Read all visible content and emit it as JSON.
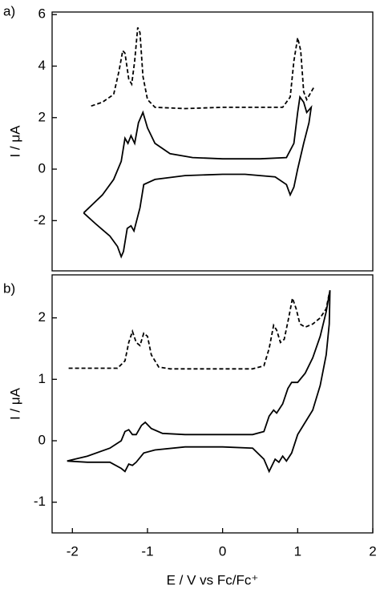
{
  "chart_data": [
    {
      "type": "line",
      "panel_label": "a)",
      "ylabel": "I / μA",
      "ylim": [
        -3.95,
        6.1
      ],
      "yticks": [
        -2,
        0,
        2,
        4,
        6
      ],
      "xlim": [
        -2.27,
        2
      ],
      "series": [
        {
          "color": "#000000",
          "dashed": true,
          "x": [
            -1.75,
            -1.6,
            -1.45,
            -1.38,
            -1.33,
            -1.3,
            -1.25,
            -1.21,
            -1.17,
            -1.13,
            -1.1,
            -1.06,
            -1.0,
            -0.9,
            -0.5,
            0,
            0.4,
            0.8,
            0.9,
            0.95,
            1.0,
            1.04,
            1.08,
            1.12,
            1.18,
            1.22
          ],
          "values": [
            2.45,
            2.6,
            2.9,
            3.8,
            4.6,
            4.5,
            3.5,
            3.3,
            4.2,
            5.5,
            5.3,
            3.6,
            2.7,
            2.4,
            2.35,
            2.4,
            2.4,
            2.4,
            2.8,
            4.2,
            5.1,
            4.6,
            3.0,
            2.7,
            3.0,
            3.2
          ]
        },
        {
          "color": "#000000",
          "dashed": false,
          "x": [
            -1.85,
            -1.6,
            -1.45,
            -1.35,
            -1.3,
            -1.26,
            -1.22,
            -1.17,
            -1.12,
            -1.06,
            -1.0,
            -0.9,
            -0.7,
            -0.4,
            0,
            0.5,
            0.85,
            0.95,
            1.0,
            1.03,
            1.08,
            1.12,
            1.18,
            1.15,
            1.08,
            1.0,
            0.95,
            0.9,
            0.85,
            0.7,
            0.3,
            0,
            -0.5,
            -0.9,
            -1.05,
            -1.1,
            -1.18,
            -1.22,
            -1.27,
            -1.32,
            -1.35,
            -1.4,
            -1.5,
            -1.7,
            -1.85
          ],
          "values": [
            -1.7,
            -1.0,
            -0.4,
            0.3,
            1.2,
            1.0,
            1.3,
            1.0,
            1.8,
            2.2,
            1.6,
            1.0,
            0.6,
            0.45,
            0.4,
            0.4,
            0.45,
            1.0,
            2.2,
            2.8,
            2.6,
            2.2,
            2.4,
            1.8,
            1.0,
            0.0,
            -0.7,
            -1.0,
            -0.6,
            -0.3,
            -0.2,
            -0.2,
            -0.25,
            -0.4,
            -0.6,
            -1.5,
            -2.4,
            -2.2,
            -2.3,
            -3.2,
            -3.4,
            -3.0,
            -2.6,
            -2.1,
            -1.7
          ]
        }
      ]
    },
    {
      "type": "line",
      "panel_label": "b)",
      "ylabel": "I / μA",
      "xlabel": "E / V vs Fc/Fc⁺",
      "ylim": [
        -1.5,
        2.7
      ],
      "yticks": [
        -1,
        0,
        1,
        2
      ],
      "xlim": [
        -2.27,
        2
      ],
      "xticks": [
        -2,
        -1,
        0,
        1,
        2
      ],
      "series": [
        {
          "color": "#000000",
          "dashed": true,
          "x": [
            -2.05,
            -1.4,
            -1.3,
            -1.25,
            -1.2,
            -1.15,
            -1.1,
            -1.05,
            -1.0,
            -0.95,
            -0.85,
            -0.7,
            0,
            0.4,
            0.55,
            0.62,
            0.68,
            0.72,
            0.77,
            0.82,
            0.88,
            0.93,
            0.98,
            1.03,
            1.1,
            1.2,
            1.3,
            1.38,
            1.42
          ],
          "values": [
            1.18,
            1.18,
            1.3,
            1.6,
            1.78,
            1.6,
            1.55,
            1.75,
            1.7,
            1.4,
            1.2,
            1.17,
            1.17,
            1.17,
            1.22,
            1.5,
            1.88,
            1.8,
            1.6,
            1.65,
            2.0,
            2.32,
            2.15,
            1.9,
            1.85,
            1.9,
            2.0,
            2.15,
            2.4
          ]
        },
        {
          "color": "#000000",
          "dashed": false,
          "x": [
            -2.07,
            -1.8,
            -1.5,
            -1.35,
            -1.3,
            -1.25,
            -1.2,
            -1.15,
            -1.08,
            -1.03,
            -0.95,
            -0.8,
            -0.5,
            0,
            0.4,
            0.55,
            0.62,
            0.68,
            0.72,
            0.8,
            0.87,
            0.92,
            1.0,
            1.1,
            1.2,
            1.3,
            1.38,
            1.43,
            1.42,
            1.38,
            1.3,
            1.2,
            1.1,
            1.0,
            0.92,
            0.85,
            0.8,
            0.75,
            0.7,
            0.62,
            0.55,
            0.4,
            0,
            -0.5,
            -0.9,
            -1.05,
            -1.15,
            -1.2,
            -1.25,
            -1.3,
            -1.35,
            -1.5,
            -1.8,
            -2.07
          ],
          "values": [
            -0.33,
            -0.25,
            -0.12,
            0.0,
            0.15,
            0.18,
            0.1,
            0.1,
            0.25,
            0.3,
            0.2,
            0.12,
            0.1,
            0.1,
            0.1,
            0.15,
            0.4,
            0.5,
            0.45,
            0.6,
            0.85,
            0.95,
            0.95,
            1.1,
            1.35,
            1.7,
            2.1,
            2.45,
            1.9,
            1.4,
            0.9,
            0.5,
            0.3,
            0.1,
            -0.2,
            -0.33,
            -0.25,
            -0.35,
            -0.3,
            -0.5,
            -0.3,
            -0.12,
            -0.1,
            -0.1,
            -0.15,
            -0.2,
            -0.35,
            -0.4,
            -0.38,
            -0.5,
            -0.45,
            -0.35,
            -0.35,
            -0.33
          ]
        }
      ]
    }
  ]
}
